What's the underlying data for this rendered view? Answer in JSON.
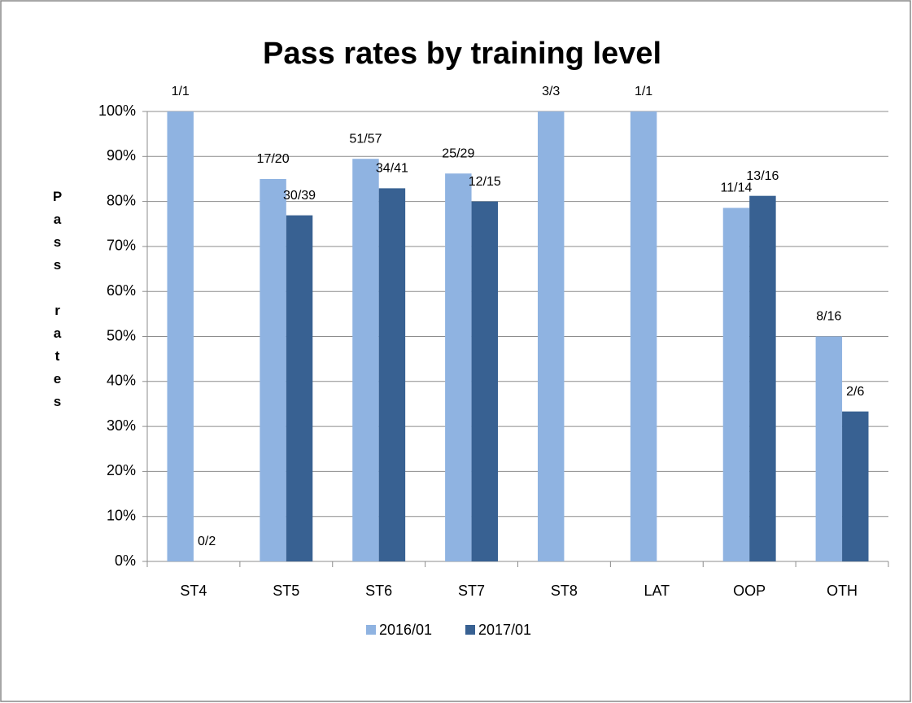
{
  "chart_data": {
    "type": "bar",
    "title": "Pass  rates by training level",
    "y_label": "Pass rates",
    "categories": [
      "ST4",
      "ST5",
      "ST6",
      "ST7",
      "ST8",
      "LAT",
      "OOP",
      "OTH"
    ],
    "series": [
      {
        "name": "2016/01",
        "color": "#8fb3e1",
        "values": [
          100,
          85,
          89.47,
          86.21,
          100,
          100,
          78.57,
          50
        ],
        "value_labels": [
          "1/1",
          "17/20",
          "51/57",
          "25/29",
          "3/3",
          "1/1",
          "11/14",
          "8/16"
        ]
      },
      {
        "name": "2017/01",
        "color": "#386192",
        "values": [
          0,
          76.92,
          82.93,
          80,
          null,
          null,
          81.25,
          33.33
        ],
        "value_labels": [
          "0/2",
          "30/39",
          "34/41",
          "12/15",
          null,
          null,
          "13/16",
          "2/6"
        ]
      }
    ],
    "ylim": [
      0,
      100
    ],
    "yticks": [
      {
        "value": 0,
        "label": "0%"
      },
      {
        "value": 10,
        "label": "10%"
      },
      {
        "value": 20,
        "label": "20%"
      },
      {
        "value": 30,
        "label": "30%"
      },
      {
        "value": 40,
        "label": "40%"
      },
      {
        "value": 50,
        "label": "50%"
      },
      {
        "value": 60,
        "label": "60%"
      },
      {
        "value": 70,
        "label": "70%"
      },
      {
        "value": 80,
        "label": "80%"
      },
      {
        "value": 90,
        "label": "90%"
      },
      {
        "value": 100,
        "label": "100%"
      }
    ],
    "grid": true,
    "legend": "bottom"
  }
}
